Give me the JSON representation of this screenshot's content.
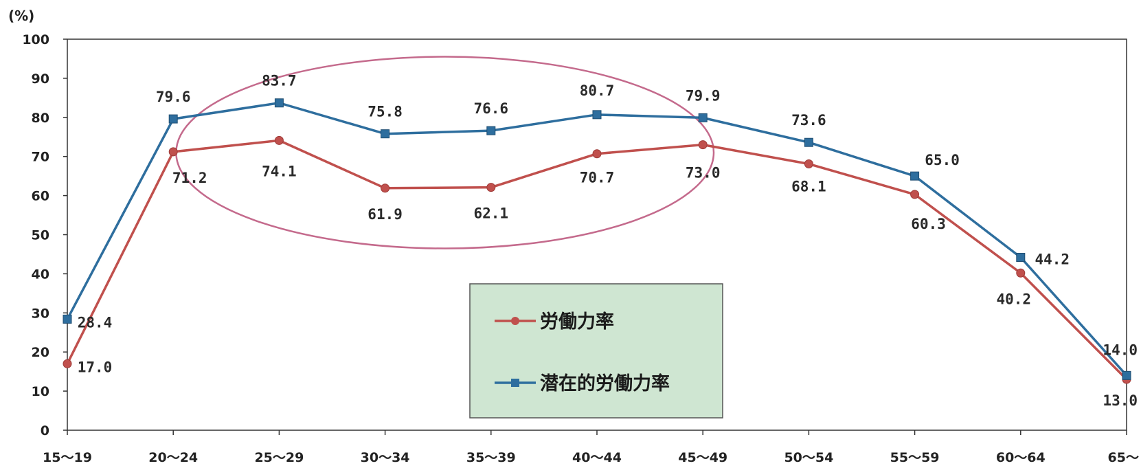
{
  "chart_data": {
    "type": "line",
    "unit": "(%)",
    "categories": [
      "15～19",
      "20～24",
      "25～29",
      "30～34",
      "35～39",
      "40～44",
      "45～49",
      "50～54",
      "55～59",
      "60～64",
      "65～"
    ],
    "ylim": [
      0,
      100
    ],
    "yticks": [
      "0",
      "10",
      "20",
      "30",
      "40",
      "50",
      "60",
      "70",
      "80",
      "90",
      "100"
    ],
    "grid": false,
    "legend_position": "center",
    "series": [
      {
        "name": "労働力率",
        "color": "#c0504d",
        "marker": "circle",
        "values": [
          17.0,
          71.2,
          74.1,
          61.9,
          62.1,
          70.7,
          73.0,
          68.1,
          60.3,
          40.2,
          13.0
        ],
        "labels": [
          "17.0",
          "71.2",
          "74.1",
          "61.9",
          "62.1",
          "70.7",
          "73.0",
          "68.1",
          "60.3",
          "40.2",
          "13.0"
        ]
      },
      {
        "name": "潜在的労働力率",
        "color": "#2e6e9e",
        "marker": "square",
        "values": [
          28.4,
          79.6,
          83.7,
          75.8,
          76.6,
          80.7,
          79.9,
          73.6,
          65.0,
          44.2,
          14.0
        ],
        "labels": [
          "28.4",
          "79.6",
          "83.7",
          "75.8",
          "76.6",
          "80.7",
          "79.9",
          "73.6",
          "65.0",
          "44.2",
          "14.0"
        ]
      }
    ],
    "annotation": {
      "shape": "ellipse",
      "color": "#c46a8c",
      "from_category": "25～29",
      "to_category": "40～44"
    },
    "legend_bg": "#cfe6d2"
  }
}
